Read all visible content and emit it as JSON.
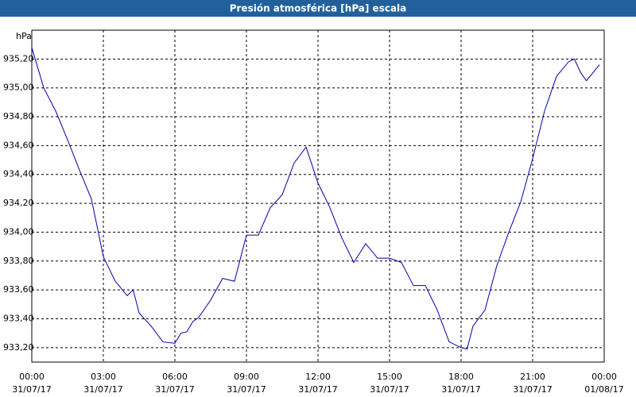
{
  "chart_data": {
    "type": "line",
    "title": "Presión atmosférica [hPa] escala",
    "y_label": "hPa",
    "color": "#0000aa",
    "grid": true,
    "x": [
      0,
      0.5,
      1,
      1.5,
      2,
      2.5,
      3,
      3.5,
      4,
      4.25,
      4.5,
      5,
      5.5,
      6,
      6.25,
      6.5,
      6.75,
      7,
      7.5,
      8,
      8.5,
      9,
      9.5,
      10,
      10.5,
      11,
      11.5,
      12,
      12.5,
      13,
      13.5,
      14,
      14.5,
      15,
      15.5,
      16,
      16.5,
      17,
      17.5,
      18,
      18.25,
      18.5,
      19,
      19.5,
      20,
      20.5,
      21,
      21.5,
      22,
      22.5,
      22.75,
      23,
      23.25,
      23.5,
      23.8
    ],
    "values": [
      935.28,
      935.0,
      934.84,
      934.64,
      934.43,
      934.23,
      933.83,
      933.66,
      933.56,
      933.6,
      933.44,
      933.35,
      933.24,
      933.23,
      933.3,
      933.31,
      933.38,
      933.41,
      933.53,
      933.68,
      933.66,
      933.98,
      933.98,
      934.17,
      934.26,
      934.48,
      934.59,
      934.34,
      934.17,
      933.96,
      933.79,
      933.92,
      933.82,
      933.82,
      933.79,
      933.63,
      933.63,
      933.46,
      933.24,
      933.2,
      933.19,
      933.35,
      933.46,
      933.77,
      934.0,
      934.21,
      934.51,
      934.84,
      935.08,
      935.18,
      935.2,
      935.11,
      935.05,
      935.1,
      935.16
    ],
    "xlim": [
      0,
      24
    ],
    "ylim": [
      933.1,
      935.4
    ],
    "xticks": [
      {
        "value": 0,
        "label": "00:00",
        "date": "31/07/17"
      },
      {
        "value": 3,
        "label": "03:00",
        "date": "31/07/17"
      },
      {
        "value": 6,
        "label": "06:00",
        "date": "31/07/17"
      },
      {
        "value": 9,
        "label": "09:00",
        "date": "31/07/17"
      },
      {
        "value": 12,
        "label": "12:00",
        "date": "31/07/17"
      },
      {
        "value": 15,
        "label": "15:00",
        "date": "31/07/17"
      },
      {
        "value": 18,
        "label": "18:00",
        "date": "31/07/17"
      },
      {
        "value": 21,
        "label": "21:00",
        "date": "31/07/17"
      },
      {
        "value": 24,
        "label": "00:00",
        "date": "01/08/17"
      }
    ],
    "yticks": [
      {
        "value": 933.2,
        "label": "933,20"
      },
      {
        "value": 933.4,
        "label": "933,40"
      },
      {
        "value": 933.6,
        "label": "933,60"
      },
      {
        "value": 933.8,
        "label": "933,80"
      },
      {
        "value": 934.0,
        "label": "934,00"
      },
      {
        "value": 934.2,
        "label": "934,20"
      },
      {
        "value": 934.4,
        "label": "934,40"
      },
      {
        "value": 934.6,
        "label": "934,60"
      },
      {
        "value": 934.8,
        "label": "934,80"
      },
      {
        "value": 935.0,
        "label": "935,00"
      },
      {
        "value": 935.2,
        "label": "935,20"
      }
    ]
  }
}
